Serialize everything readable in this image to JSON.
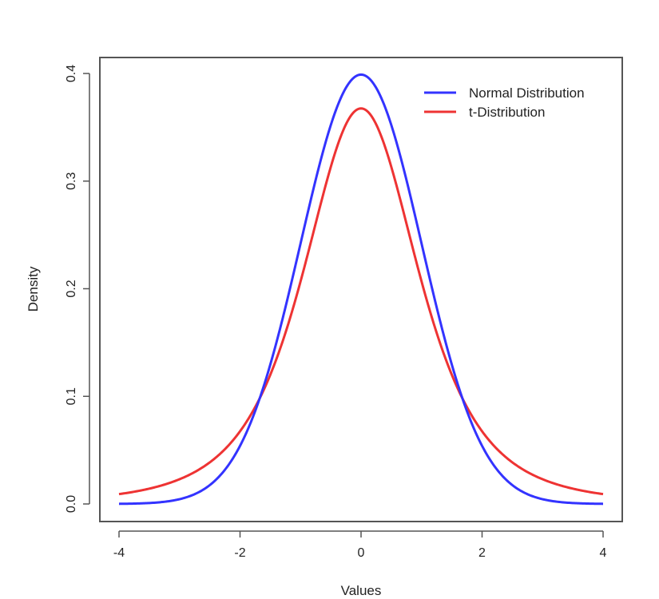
{
  "chart_data": {
    "type": "line",
    "title": "",
    "xlabel": "Values",
    "ylabel": "Density",
    "xlim": [
      -4,
      4
    ],
    "ylim": [
      0,
      0.4
    ],
    "xticks": [
      -4,
      -2,
      0,
      2,
      4
    ],
    "xtick_labels": [
      "-4",
      "-2",
      "0",
      "2",
      "4"
    ],
    "yticks": [
      0.0,
      0.1,
      0.2,
      0.3,
      0.4
    ],
    "ytick_labels": [
      "0.0",
      "0.1",
      "0.2",
      "0.3",
      "0.4"
    ],
    "grid": false,
    "legend_position": "top-right",
    "x": [
      -4,
      -3.5,
      -3,
      -2.5,
      -2,
      -1.5,
      -1,
      -0.5,
      0,
      0.5,
      1,
      1.5,
      2,
      2.5,
      3,
      3.5,
      4
    ],
    "series": [
      {
        "name": "Normal Distribution",
        "color": "#3333ff",
        "values": [
          0.0001,
          0.0009,
          0.0044,
          0.0175,
          0.054,
          0.1295,
          0.242,
          0.3521,
          0.3989,
          0.3521,
          0.242,
          0.1295,
          0.054,
          0.0175,
          0.0044,
          0.0009,
          0.0001
        ]
      },
      {
        "name": "t-Distribution",
        "color": "#ee3333",
        "values": [
          0.0092,
          0.0129,
          0.0229,
          0.0321,
          0.0675,
          0.1169,
          0.2067,
          0.3125,
          0.3676,
          0.3125,
          0.2067,
          0.1169,
          0.0675,
          0.0321,
          0.0229,
          0.0129,
          0.0092
        ]
      }
    ]
  },
  "legend": {
    "items": [
      {
        "label": "Normal Distribution",
        "color": "#3333ff"
      },
      {
        "label": "t-Distribution",
        "color": "#ee3333"
      }
    ]
  }
}
